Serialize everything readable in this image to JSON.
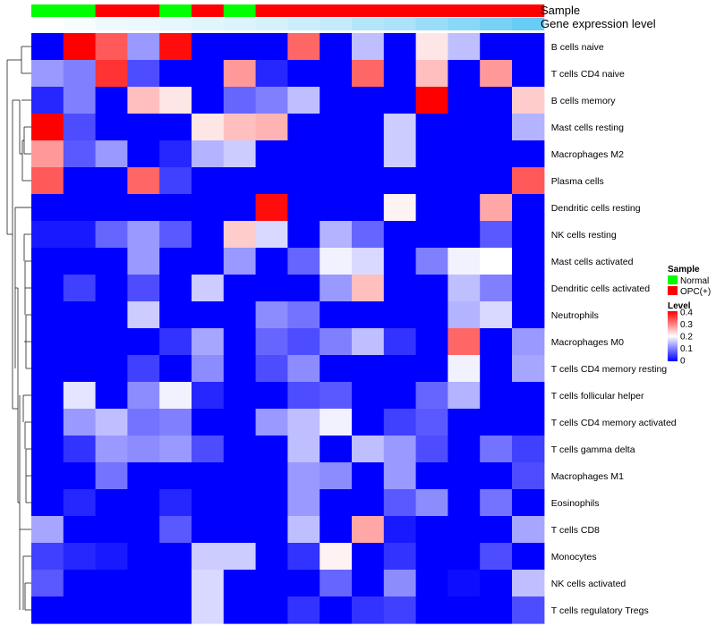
{
  "chart_data": {
    "type": "heatmap",
    "annotation_labels": {
      "sample": "Sample",
      "gene_expression": "Gene expression level"
    },
    "legend": {
      "sample_title": "Sample",
      "sample_items": [
        {
          "label": "Normal",
          "color": "#00ff00"
        },
        {
          "label": "OPC(+)",
          "color": "#ff0000"
        }
      ],
      "level_title": "Level",
      "level_ticks": [
        "0.4",
        "0.3",
        "0.2",
        "0.1",
        "0"
      ],
      "position": "right"
    },
    "colors": {
      "low": "#0000ff",
      "mid": "#ffffff",
      "high": "#ff0000",
      "normal": "#00ff00",
      "opc": "#ff0000",
      "expr_low": "#ffffff",
      "expr_high": "#56c7f4"
    },
    "value_range": [
      0,
      0.4
    ],
    "sample_groups": [
      "Normal",
      "Normal",
      "OPC(+)",
      "OPC(+)",
      "Normal",
      "OPC(+)",
      "Normal",
      "OPC(+)",
      "OPC(+)",
      "OPC(+)",
      "OPC(+)",
      "OPC(+)",
      "OPC(+)",
      "OPC(+)",
      "OPC(+)",
      "OPC(+)"
    ],
    "gene_expression_level": [
      0.0,
      0.05,
      0.1,
      0.12,
      0.15,
      0.18,
      0.2,
      0.25,
      0.3,
      0.35,
      0.45,
      0.5,
      0.6,
      0.7,
      0.8,
      0.9
    ],
    "rows": [
      "B cells naive",
      "T cells CD4 naive",
      "B cells memory",
      "Mast cells resting",
      "Macrophages M2",
      "Plasma cells",
      "Dendritic cells resting",
      "NK cells resting",
      "Mast cells activated",
      "Dendritic cells activated",
      "Neutrophils",
      "Macrophages M0",
      "T cells CD4 memory resting",
      "T cells follicular helper",
      "T cells CD4 memory activated",
      "T cells gamma delta",
      "Macrophages M1",
      "Eosinophils",
      "T cells CD8",
      "Monocytes",
      "NK cells activated",
      "T cells regulatory  Tregs"
    ],
    "values": [
      [
        0,
        0.4,
        0.33,
        0.12,
        0.39,
        0,
        0,
        0,
        0.32,
        0,
        0.15,
        0,
        0.22,
        0.15,
        0,
        0
      ],
      [
        0.12,
        0.1,
        0.36,
        0.06,
        0,
        0,
        0.28,
        0.03,
        0,
        0,
        0.32,
        0,
        0.25,
        0,
        0.28,
        0
      ],
      [
        0.03,
        0.1,
        0,
        0.25,
        0.22,
        0,
        0.08,
        0.1,
        0.15,
        0,
        0,
        0,
        0.4,
        0,
        0,
        0.24
      ],
      [
        0.4,
        0.06,
        0,
        0,
        0,
        0.22,
        0.25,
        0.26,
        0,
        0,
        0,
        0.16,
        0,
        0,
        0,
        0.14
      ],
      [
        0.28,
        0.07,
        0.12,
        0,
        0.03,
        0.14,
        0.16,
        0,
        0,
        0,
        0,
        0.16,
        0,
        0,
        0,
        0
      ],
      [
        0.33,
        0,
        0,
        0.32,
        0.05,
        0,
        0,
        0,
        0,
        0,
        0,
        0,
        0,
        0,
        0,
        0.33
      ],
      [
        0,
        0,
        0,
        0,
        0,
        0,
        0,
        0.39,
        0,
        0,
        0,
        0.21,
        0,
        0,
        0.27,
        0
      ],
      [
        0.02,
        0.02,
        0.08,
        0.12,
        0.07,
        0,
        0.24,
        0.17,
        0,
        0.14,
        0.08,
        0,
        0,
        0,
        0.07,
        0
      ],
      [
        0,
        0,
        0,
        0.12,
        0,
        0,
        0.12,
        0,
        0.08,
        0.19,
        0.17,
        0,
        0.1,
        0.19,
        0.2,
        0
      ],
      [
        0,
        0.05,
        0,
        0.06,
        0,
        0.16,
        0,
        0,
        0,
        0.12,
        0.25,
        0,
        0,
        0.15,
        0.1,
        0
      ],
      [
        0,
        0,
        0,
        0.16,
        0,
        0,
        0,
        0.11,
        0.09,
        0,
        0,
        0,
        0,
        0.14,
        0.17,
        0
      ],
      [
        0,
        0,
        0,
        0,
        0.04,
        0.13,
        0,
        0.08,
        0.06,
        0.1,
        0.15,
        0.04,
        0,
        0.32,
        0,
        0.12
      ],
      [
        0,
        0,
        0,
        0.05,
        0,
        0.11,
        0,
        0.06,
        0.11,
        0,
        0,
        0,
        0,
        0.19,
        0,
        0.13
      ],
      [
        0,
        0.18,
        0,
        0.11,
        0.19,
        0.03,
        0,
        0,
        0.06,
        0.07,
        0,
        0,
        0.08,
        0.14,
        0,
        0
      ],
      [
        0,
        0.12,
        0.15,
        0.09,
        0.1,
        0,
        0,
        0.12,
        0.15,
        0.19,
        0,
        0.05,
        0.07,
        0,
        0,
        0
      ],
      [
        0,
        0.04,
        0.12,
        0.11,
        0.12,
        0.06,
        0,
        0,
        0.15,
        0,
        0.15,
        0.12,
        0.06,
        0,
        0.09,
        0.05
      ],
      [
        0,
        0,
        0.09,
        0,
        0,
        0,
        0,
        0,
        0.12,
        0.11,
        0,
        0.12,
        0,
        0,
        0,
        0.06
      ],
      [
        0,
        0.03,
        0,
        0,
        0.03,
        0,
        0,
        0,
        0.12,
        0,
        0,
        0.07,
        0.11,
        0,
        0.09,
        0
      ],
      [
        0.13,
        0,
        0,
        0,
        0.07,
        0,
        0,
        0,
        0.15,
        0,
        0.27,
        0.02,
        0,
        0,
        0,
        0.13
      ],
      [
        0.05,
        0.03,
        0.02,
        0,
        0,
        0.16,
        0.16,
        0,
        0.04,
        0.21,
        0,
        0.04,
        0,
        0,
        0.06,
        0
      ],
      [
        0.07,
        0,
        0,
        0,
        0,
        0.17,
        0,
        0,
        0,
        0.08,
        0,
        0.11,
        0,
        0.01,
        0,
        0.15
      ],
      [
        0,
        0,
        0,
        0,
        0,
        0.17,
        0,
        0,
        0.04,
        0,
        0.04,
        0.05,
        0,
        0,
        0,
        0.06
      ]
    ]
  }
}
